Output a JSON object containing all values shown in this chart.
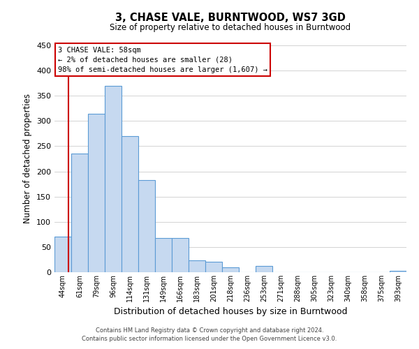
{
  "title": "3, CHASE VALE, BURNTWOOD, WS7 3GD",
  "subtitle": "Size of property relative to detached houses in Burntwood",
  "xlabel": "Distribution of detached houses by size in Burntwood",
  "ylabel": "Number of detached properties",
  "bin_labels": [
    "44sqm",
    "61sqm",
    "79sqm",
    "96sqm",
    "114sqm",
    "131sqm",
    "149sqm",
    "166sqm",
    "183sqm",
    "201sqm",
    "218sqm",
    "236sqm",
    "253sqm",
    "271sqm",
    "288sqm",
    "305sqm",
    "323sqm",
    "340sqm",
    "358sqm",
    "375sqm",
    "393sqm"
  ],
  "bar_heights": [
    70,
    236,
    315,
    370,
    270,
    183,
    68,
    68,
    24,
    21,
    10,
    0,
    12,
    0,
    0,
    0,
    0,
    0,
    0,
    0,
    3
  ],
  "bar_color": "#c6d9f0",
  "bar_edge_color": "#5b9bd5",
  "ylim": [
    0,
    450
  ],
  "yticks": [
    0,
    50,
    100,
    150,
    200,
    250,
    300,
    350,
    400,
    450
  ],
  "annotation_line1": "3 CHASE VALE: 58sqm",
  "annotation_line2": "← 2% of detached houses are smaller (28)",
  "annotation_line3": "98% of semi-detached houses are larger (1,607) →",
  "annotation_box_color": "#ffffff",
  "annotation_box_edge": "#cc0000",
  "red_line_color": "#cc0000",
  "footer1": "Contains HM Land Registry data © Crown copyright and database right 2024.",
  "footer2": "Contains public sector information licensed under the Open Government Licence v3.0.",
  "background_color": "#ffffff",
  "grid_color": "#cccccc"
}
